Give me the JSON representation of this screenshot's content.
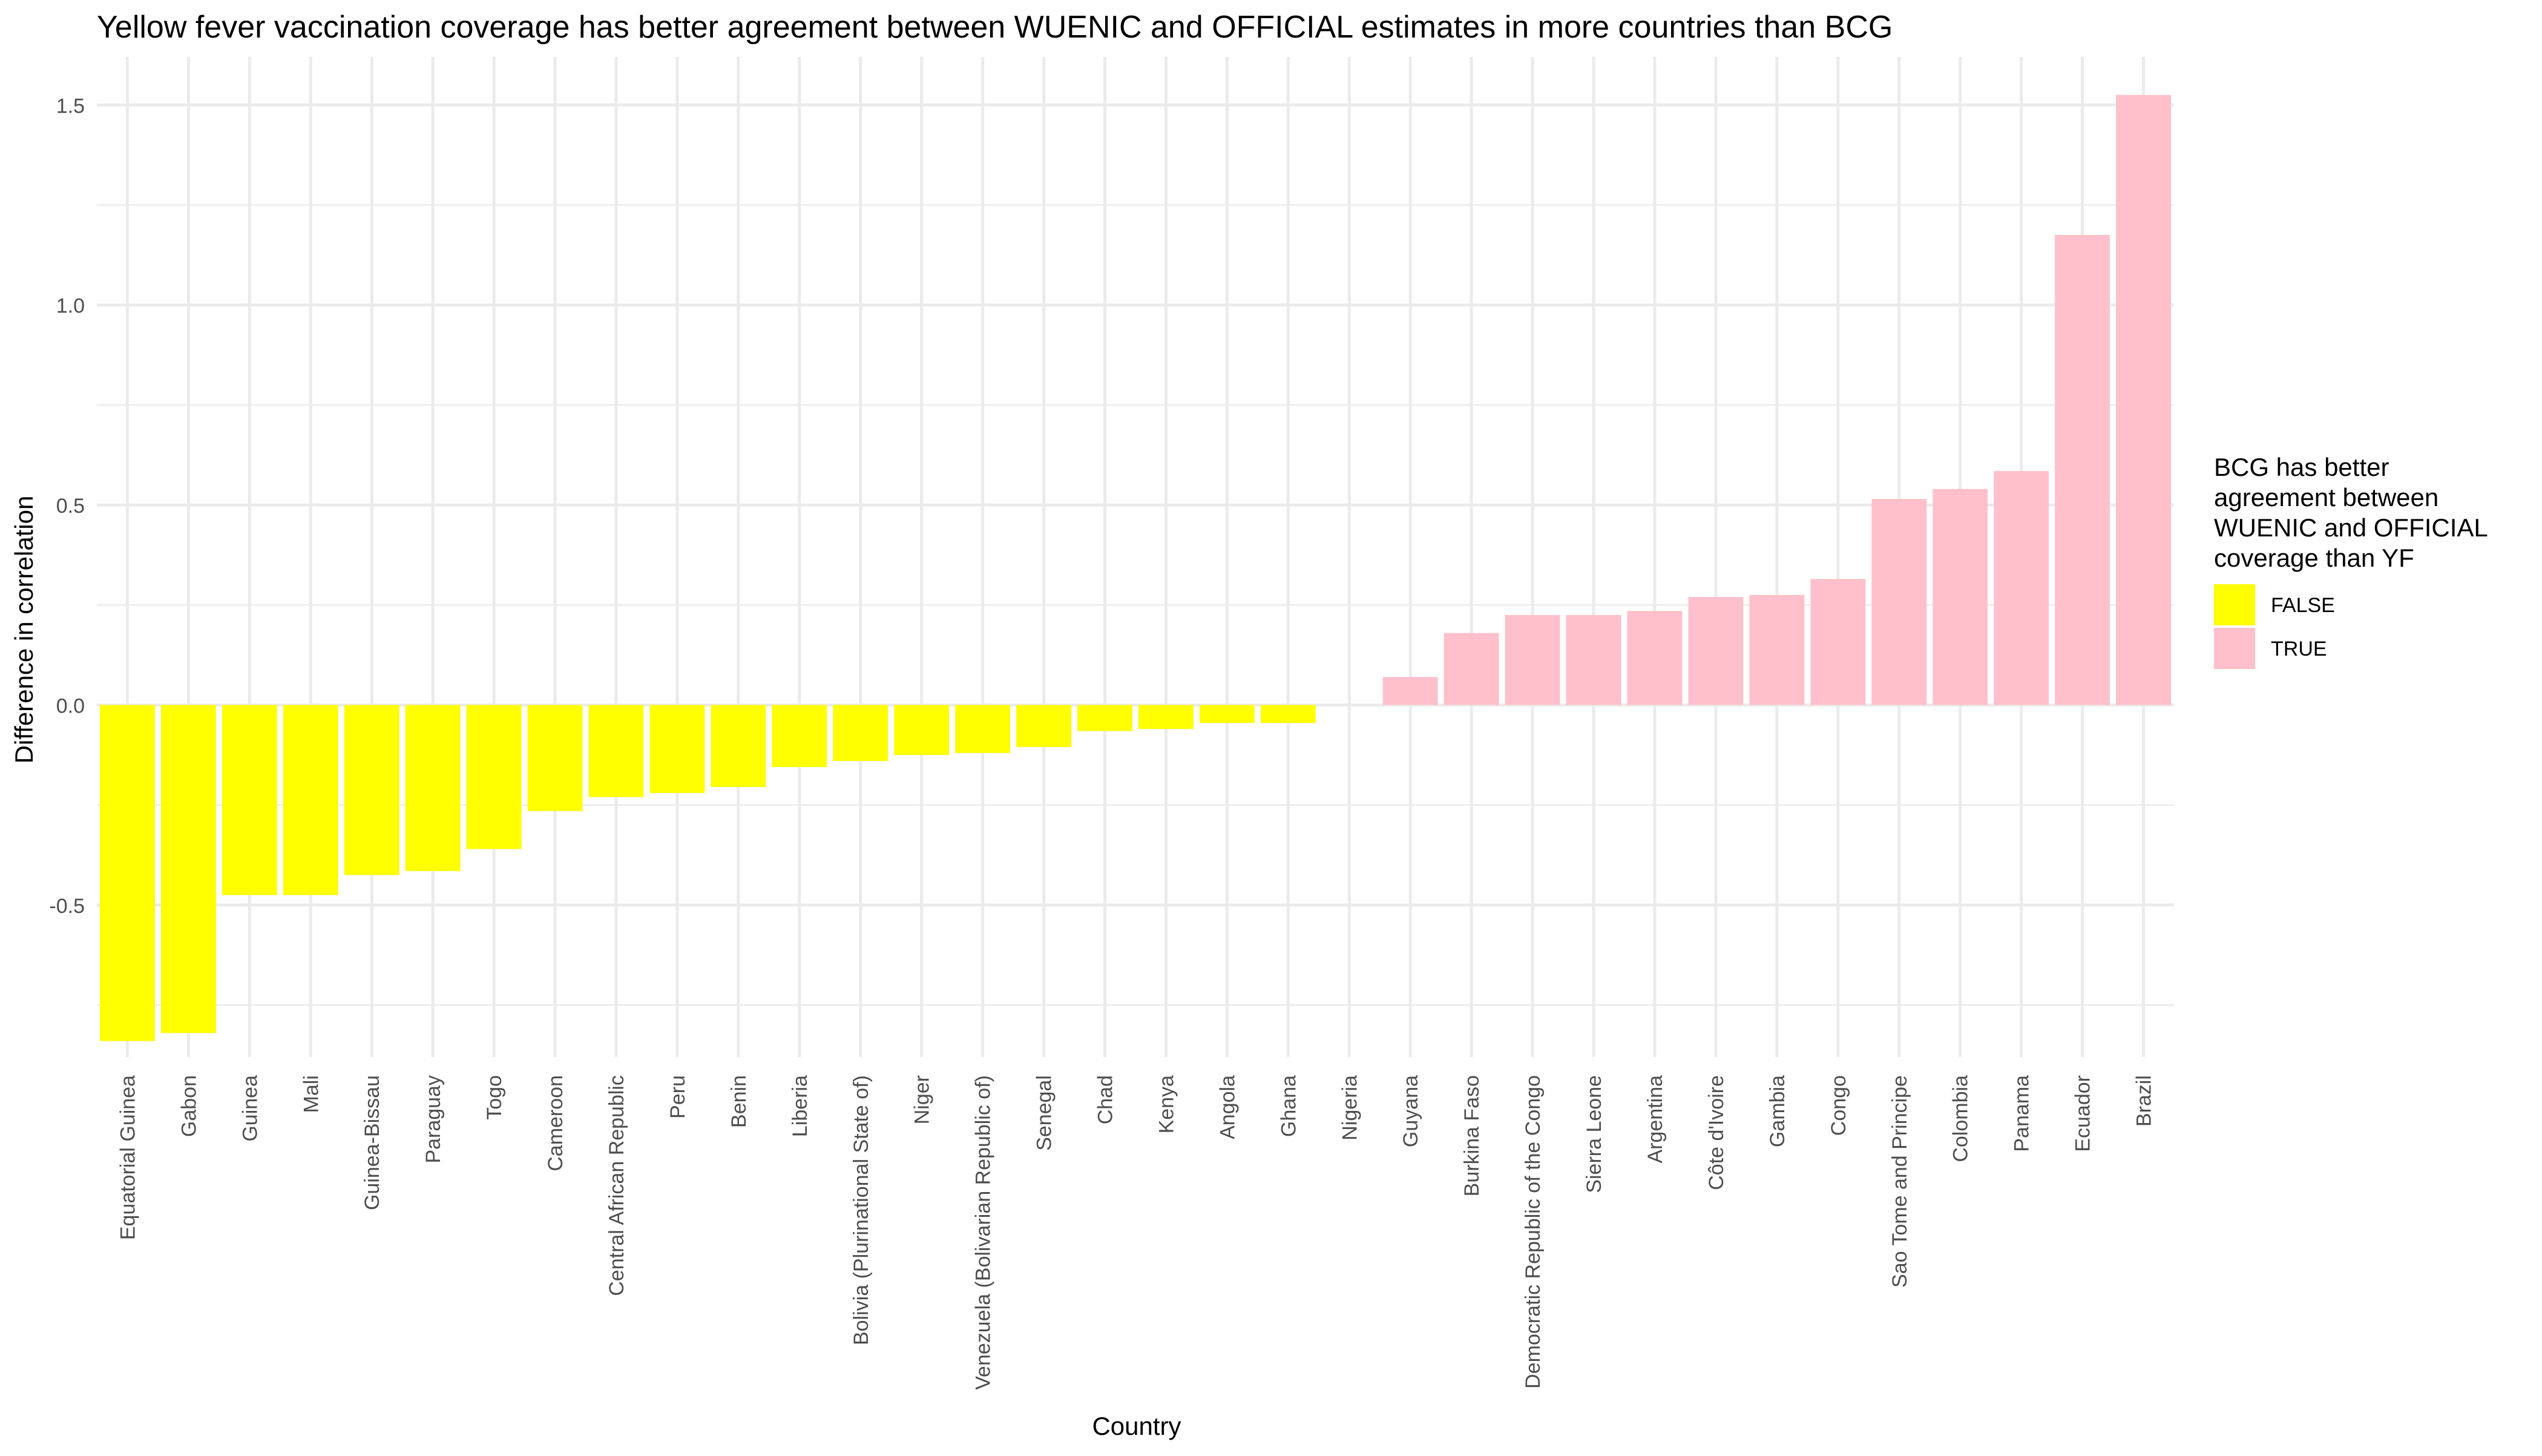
{
  "chart_data": {
    "type": "bar",
    "title": "Yellow fever vaccination coverage has better agreement between WUENIC and OFFICIAL estimates in more countries than BCG",
    "xlabel": "Country",
    "ylabel": "Difference in correlation",
    "ylim": [
      -0.88,
      1.62
    ],
    "yticks": [
      -0.5,
      0.0,
      0.5,
      1.0,
      1.5
    ],
    "ytick_labels": [
      "-0.5",
      "0.0",
      "0.5",
      "1.0",
      "1.5"
    ],
    "grid": true,
    "categories": [
      "Equatorial Guinea",
      "Gabon",
      "Guinea",
      "Mali",
      "Guinea-Bissau",
      "Paraguay",
      "Togo",
      "Cameroon",
      "Central African Republic",
      "Peru",
      "Benin",
      "Liberia",
      "Bolivia (Plurinational State of)",
      "Niger",
      "Venezuela (Bolivarian Republic of)",
      "Senegal",
      "Chad",
      "Kenya",
      "Angola",
      "Ghana",
      "Nigeria",
      "Guyana",
      "Burkina Faso",
      "Democratic Republic of the Congo",
      "Sierra Leone",
      "Argentina",
      "Côte d'Ivoire",
      "Gambia",
      "Congo",
      "Sao Tome and Principe",
      "Colombia",
      "Panama",
      "Ecuador",
      "Brazil"
    ],
    "values": [
      -0.84,
      -0.82,
      -0.475,
      -0.475,
      -0.425,
      -0.415,
      -0.36,
      -0.265,
      -0.23,
      -0.22,
      -0.205,
      -0.155,
      -0.14,
      -0.125,
      -0.12,
      -0.105,
      -0.065,
      -0.06,
      -0.045,
      -0.045,
      0.0,
      0.07,
      0.18,
      0.225,
      0.225,
      0.235,
      0.27,
      0.275,
      0.315,
      0.515,
      0.54,
      0.585,
      1.175,
      1.525
    ],
    "groups": [
      "FALSE",
      "FALSE",
      "FALSE",
      "FALSE",
      "FALSE",
      "FALSE",
      "FALSE",
      "FALSE",
      "FALSE",
      "FALSE",
      "FALSE",
      "FALSE",
      "FALSE",
      "FALSE",
      "FALSE",
      "FALSE",
      "FALSE",
      "FALSE",
      "FALSE",
      "FALSE",
      "FALSE",
      "TRUE",
      "TRUE",
      "TRUE",
      "TRUE",
      "TRUE",
      "TRUE",
      "TRUE",
      "TRUE",
      "TRUE",
      "TRUE",
      "TRUE",
      "TRUE",
      "TRUE"
    ],
    "legend": {
      "title": "BCG has better agreement between WUENIC and OFFICIAL coverage than YF",
      "title_lines": [
        "BCG has better",
        "agreement between",
        "WUENIC and OFFICIAL",
        "coverage than YF"
      ],
      "position": "right",
      "entries": [
        {
          "label": "FALSE",
          "color": "#FFFF00"
        },
        {
          "label": "TRUE",
          "color": "#FFC0CB"
        }
      ]
    },
    "colors": {
      "FALSE": "#FFFF00",
      "TRUE": "#FFC0CB",
      "grid": "#EBEBEB",
      "text": "#000000",
      "tick_text": "#4D4D4D"
    }
  }
}
